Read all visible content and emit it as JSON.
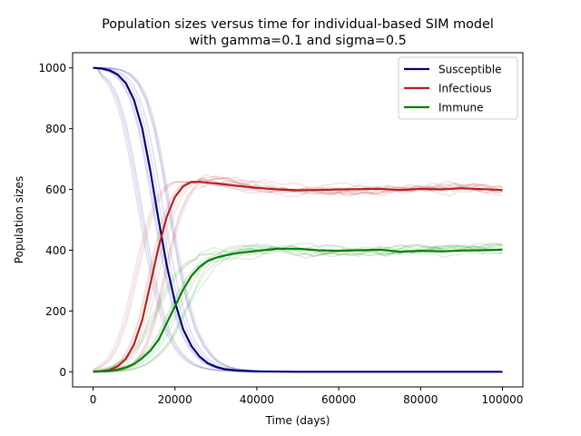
{
  "chart_data": {
    "type": "line",
    "title_line1": "Population sizes versus time for individual-based SIM model",
    "title_line2": "with gamma=0.1 and sigma=0.5",
    "xlabel": "Time (days)",
    "ylabel": "Population sizes",
    "xlim": [
      -5000,
      105000
    ],
    "ylim": [
      -50,
      1050
    ],
    "xticks": [
      0,
      20000,
      40000,
      60000,
      80000,
      100000
    ],
    "yticks": [
      0,
      200,
      400,
      600,
      800,
      1000
    ],
    "grid": false,
    "legend_position": "upper right",
    "legend": [
      {
        "label": "Susceptible",
        "color": "#000080"
      },
      {
        "label": "Infectious",
        "color": "#b22222"
      },
      {
        "label": "Immune",
        "color": "#008000"
      }
    ],
    "series": [
      {
        "name": "Susceptible",
        "color": "#000080",
        "x": [
          0,
          2000,
          4000,
          6000,
          8000,
          10000,
          12000,
          14000,
          16000,
          18000,
          20000,
          22000,
          24000,
          26000,
          28000,
          30000,
          32000,
          35000,
          40000,
          50000,
          60000,
          70000,
          80000,
          90000,
          100000
        ],
        "y": [
          1000,
          998,
          992,
          978,
          950,
          895,
          800,
          660,
          500,
          350,
          230,
          140,
          85,
          50,
          28,
          16,
          9,
          4,
          1,
          0,
          0,
          0,
          0,
          0,
          0
        ]
      },
      {
        "name": "Infectious",
        "color": "#b22222",
        "x": [
          0,
          2000,
          4000,
          6000,
          8000,
          10000,
          12000,
          14000,
          16000,
          18000,
          20000,
          22000,
          24000,
          26000,
          28000,
          30000,
          32000,
          35000,
          40000,
          45000,
          50000,
          55000,
          60000,
          65000,
          70000,
          75000,
          80000,
          85000,
          90000,
          95000,
          100000
        ],
        "y": [
          0,
          2,
          6,
          18,
          42,
          90,
          170,
          290,
          410,
          510,
          575,
          610,
          625,
          625,
          622,
          620,
          617,
          612,
          605,
          600,
          597,
          598,
          600,
          601,
          602,
          598,
          602,
          600,
          604,
          601,
          598
        ]
      },
      {
        "name": "Immune",
        "color": "#008000",
        "x": [
          0,
          2000,
          4000,
          6000,
          8000,
          10000,
          12000,
          14000,
          16000,
          18000,
          20000,
          22000,
          24000,
          26000,
          28000,
          30000,
          32000,
          35000,
          40000,
          45000,
          50000,
          55000,
          60000,
          65000,
          70000,
          75000,
          80000,
          85000,
          90000,
          95000,
          100000
        ],
        "y": [
          0,
          1,
          3,
          7,
          14,
          25,
          45,
          70,
          105,
          160,
          215,
          270,
          315,
          345,
          365,
          375,
          382,
          390,
          398,
          405,
          405,
          400,
          398,
          400,
          402,
          395,
          398,
          396,
          399,
          400,
          402
        ]
      }
    ]
  }
}
